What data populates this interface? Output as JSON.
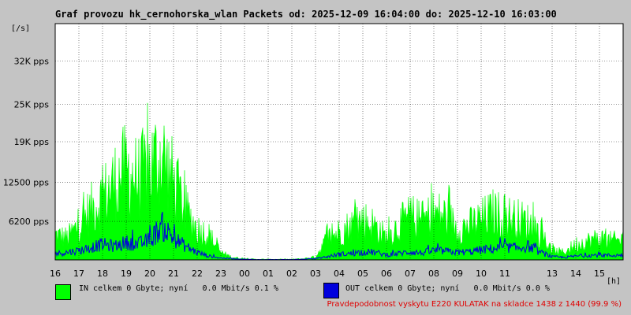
{
  "chart_data": {
    "type": "area",
    "title": "Graf provozu hk_cernohorska_wlan Packets od: 2025-12-09 16:04:00 do: 2025-12-10 16:03:00",
    "ylabel": "[/s]",
    "xlabel": "[h]",
    "ylim": [
      0,
      38000
    ],
    "grid": true,
    "y_ticks": [
      {
        "value": 6200,
        "label": "6200 pps"
      },
      {
        "value": 12500,
        "label": "12500 pps"
      },
      {
        "value": 19000,
        "label": "19K pps"
      },
      {
        "value": 25000,
        "label": "25K pps"
      },
      {
        "value": 32000,
        "label": "32K pps"
      }
    ],
    "x_ticks": [
      "17",
      "18",
      "19",
      "20",
      "21",
      "22",
      "23",
      "00",
      "01",
      "02",
      "03",
      "04",
      "05",
      "06",
      "07",
      "08",
      "09",
      "10",
      "11",
      "13",
      "14",
      "15",
      "16"
    ],
    "series": [
      {
        "name": "IN",
        "color": "#00ff00",
        "hours": [
          16.0,
          16.5,
          17.0,
          17.5,
          18.0,
          18.5,
          19.0,
          19.5,
          20.0,
          20.5,
          21.0,
          21.5,
          22.0,
          22.5,
          23.0,
          23.5,
          0.0,
          0.5,
          1.0,
          1.5,
          2.0,
          2.5,
          3.0,
          3.5,
          4.0,
          4.5,
          5.0,
          5.5,
          6.0,
          6.5,
          7.0,
          7.5,
          8.0,
          8.5,
          9.0,
          9.5,
          10.0,
          10.5,
          11.0,
          11.5,
          12.0,
          12.5,
          13.0,
          13.5,
          14.0,
          14.5,
          15.0,
          15.5,
          16.0
        ],
        "values": [
          4000,
          3500,
          5500,
          8000,
          10000,
          12500,
          14500,
          13000,
          15000,
          17000,
          12500,
          8000,
          5000,
          4000,
          1200,
          400,
          200,
          100,
          100,
          100,
          100,
          200,
          500,
          3500,
          4500,
          5500,
          6500,
          5500,
          3500,
          5500,
          7000,
          6200,
          7500,
          7000,
          5000,
          5500,
          6500,
          7500,
          7000,
          6500,
          6000,
          4000,
          1500,
          1200,
          2500,
          3000,
          3500,
          3000,
          3200
        ]
      },
      {
        "name": "OUT",
        "color": "#0000dd",
        "hours": [
          16.0,
          16.5,
          17.0,
          17.5,
          18.0,
          18.5,
          19.0,
          19.5,
          20.0,
          20.5,
          21.0,
          21.5,
          22.0,
          22.5,
          23.0,
          23.5,
          0.0,
          0.5,
          1.0,
          1.5,
          2.0,
          2.5,
          3.0,
          3.5,
          4.0,
          4.5,
          5.0,
          5.5,
          6.0,
          6.5,
          7.0,
          7.5,
          8.0,
          8.5,
          9.0,
          9.5,
          10.0,
          10.5,
          11.0,
          11.5,
          12.0,
          12.5,
          13.0,
          13.5,
          14.0,
          14.5,
          15.0,
          15.5,
          16.0
        ],
        "values": [
          1000,
          1200,
          1500,
          2000,
          2500,
          2200,
          2800,
          2500,
          3200,
          5500,
          3500,
          2200,
          1200,
          600,
          300,
          200,
          100,
          50,
          50,
          50,
          50,
          100,
          200,
          500,
          900,
          1000,
          1300,
          1200,
          800,
          1000,
          1300,
          1100,
          1500,
          1400,
          1200,
          1300,
          1600,
          1800,
          2000,
          1900,
          2200,
          1200,
          500,
          400,
          600,
          700,
          800,
          700,
          800
        ]
      }
    ]
  },
  "legend": {
    "in_text": "IN celkem 0 Gbyte; nyní   0.0 Mbit/s 0.1 %",
    "out_text": "OUT celkem 0 Gbyte; nyní   0.0 Mbit/s 0.0 %",
    "in_color": "#00ff00",
    "out_color": "#0000dd"
  },
  "footer": {
    "probability_note": "Pravdepodobnost vyskytu E220 KULATAK na skladce 1438 z 1440 (99.9 %)",
    "note_color": "#e00000"
  }
}
